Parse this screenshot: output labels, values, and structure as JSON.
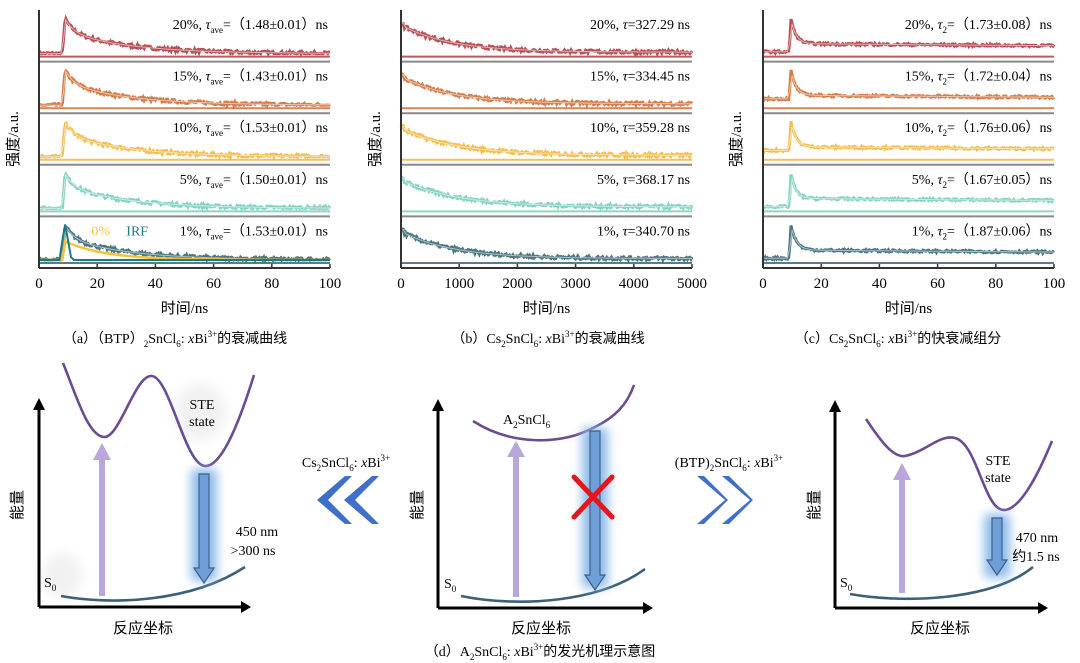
{
  "chart_data": [
    {
      "type": "line",
      "panel": "a",
      "title": "（a）（BTP）2SnCl6: xBi3+的衰减曲线",
      "caption_parts": {
        "prefix": "（a）（BTP）",
        "sub1": "2",
        "mid": "SnCl",
        "sub2": "6",
        "post": ": ",
        "x": "x",
        "bi": "Bi",
        "sup": "3+",
        "tail": "的衰减曲线"
      },
      "xlabel": "时间/ns",
      "ylabel": "强度/a.u.",
      "xlim": [
        0,
        100
      ],
      "xticks": [
        0,
        20,
        40,
        60,
        80,
        100
      ],
      "decay_kind": "fast_avg",
      "onset": 8,
      "series": [
        {
          "name": "20%",
          "label_pre": "20%, ",
          "sym": "τ",
          "sub": "ave",
          "label_post": "=（1.48±0.01）ns",
          "tau": 1.48,
          "err": 0.01,
          "color": "#a3151c"
        },
        {
          "name": "15%",
          "label_pre": "15%, ",
          "sym": "τ",
          "sub": "ave",
          "label_post": "=（1.43±0.01）ns",
          "tau": 1.43,
          "err": 0.01,
          "color": "#c9500f"
        },
        {
          "name": "10%",
          "label_pre": "10%, ",
          "sym": "τ",
          "sub": "ave",
          "label_post": "=（1.53±0.01）ns",
          "tau": 1.53,
          "err": 0.01,
          "color": "#f0a818"
        },
        {
          "name": "5%",
          "label_pre": "5%, ",
          "sym": "τ",
          "sub": "ave",
          "label_post": "=（1.50±0.01）ns",
          "tau": 1.5,
          "err": 0.01,
          "color": "#5dc4ad"
        },
        {
          "name": "1%",
          "label_pre": "1%, ",
          "sym": "τ",
          "sub": "ave",
          "label_post": "=（1.53±0.01）ns",
          "tau": 1.53,
          "err": 0.01,
          "color": "#0d4a58"
        }
      ],
      "extra_legend": [
        {
          "name": "0%",
          "color": "#f5c23a"
        },
        {
          "name": "IRF",
          "color": "#1c7a86"
        }
      ]
    },
    {
      "type": "line",
      "panel": "b",
      "title": "（b）Cs2SnCl6: xBi3+的衰减曲线",
      "caption_parts": {
        "prefix": "（b）Cs",
        "sub1": "2",
        "mid": "SnCl",
        "sub2": "6",
        "post": ": ",
        "x": "x",
        "bi": "Bi",
        "sup": "3+",
        "tail": "的衰减曲线"
      },
      "xlabel": "时间/ns",
      "ylabel": "强度/a.u.",
      "xlim": [
        0,
        5000
      ],
      "xticks": [
        0,
        1000,
        2000,
        3000,
        4000,
        5000
      ],
      "decay_kind": "slow",
      "onset": 50,
      "series": [
        {
          "name": "20%",
          "label_pre": "20%, ",
          "sym": "τ",
          "sub": "",
          "label_post": "=327.29 ns",
          "tau": 327.29,
          "color": "#a3151c"
        },
        {
          "name": "15%",
          "label_pre": "15%, ",
          "sym": "τ",
          "sub": "",
          "label_post": "=334.45 ns",
          "tau": 334.45,
          "color": "#c9500f"
        },
        {
          "name": "10%",
          "label_pre": "10%, ",
          "sym": "τ",
          "sub": "",
          "label_post": "=359.28 ns",
          "tau": 359.28,
          "color": "#f0a818"
        },
        {
          "name": "5%",
          "label_pre": "5%, ",
          "sym": "τ",
          "sub": "",
          "label_post": "=368.17 ns",
          "tau": 368.17,
          "color": "#5dc4ad"
        },
        {
          "name": "1%",
          "label_pre": "1%, ",
          "sym": "τ",
          "sub": "",
          "label_post": "=340.70 ns",
          "tau": 340.7,
          "color": "#0d4a58"
        }
      ]
    },
    {
      "type": "line",
      "panel": "c",
      "title": "（c）Cs2SnCl6: xBi3+的快衰减组分",
      "caption_parts": {
        "prefix": "（c）Cs",
        "sub1": "2",
        "mid": "SnCl",
        "sub2": "6",
        "post": ": ",
        "x": "x",
        "bi": "Bi",
        "sup": "3+",
        "tail": "的快衰减组分"
      },
      "xlabel": "时间/ns",
      "ylabel": "强度/a.u.",
      "xlim": [
        0,
        100
      ],
      "xticks": [
        0,
        20,
        40,
        60,
        80,
        100
      ],
      "decay_kind": "fast_spike",
      "onset": 9,
      "series": [
        {
          "name": "20%",
          "label_pre": "20%, ",
          "sym": "τ",
          "sub": "2",
          "label_post": "=（1.73±0.08）ns",
          "tau": 1.73,
          "err": 0.08,
          "color": "#a3151c"
        },
        {
          "name": "15%",
          "label_pre": "15%, ",
          "sym": "τ",
          "sub": "2",
          "label_post": "=（1.72±0.04）ns",
          "tau": 1.72,
          "err": 0.04,
          "color": "#c9500f"
        },
        {
          "name": "10%",
          "label_pre": "10%, ",
          "sym": "τ",
          "sub": "2",
          "label_post": "=（1.76±0.06）ns",
          "tau": 1.76,
          "err": 0.06,
          "color": "#f0a818"
        },
        {
          "name": "5%",
          "label_pre": "5%, ",
          "sym": "τ",
          "sub": "2",
          "label_post": "=（1.67±0.05）ns",
          "tau": 1.67,
          "err": 0.05,
          "color": "#5dc4ad"
        },
        {
          "name": "1%",
          "label_pre": "1%, ",
          "sym": "τ",
          "sub": "2",
          "label_post": "=（1.87±0.06）ns",
          "tau": 1.87,
          "err": 0.06,
          "color": "#0d4a58"
        }
      ]
    }
  ],
  "diagram": {
    "caption_parts": {
      "prefix": "（d）A",
      "sub1": "2",
      "mid": "SnCl",
      "sub2": "6",
      "post": ": ",
      "x": "x",
      "bi": "Bi",
      "sup": "3+",
      "tail": "的发光机理示意图"
    },
    "ylabel": "能量",
    "xlabel": "反应坐标",
    "ground_label": {
      "main": "S",
      "sub": "0"
    },
    "left": {
      "state_label_1": "STE",
      "state_label_2": "state",
      "emission_1": "450 nm",
      "emission_2": ">300 ns"
    },
    "center": {
      "state_label": {
        "main": "A",
        "sub1": "2",
        "mid": "SnCl",
        "sub2": "6"
      },
      "blocked_marker": "×"
    },
    "right": {
      "state_label_1": "STE",
      "state_label_2": "state",
      "emission_1": "470 nm",
      "emission_2": "约1.5 ns"
    },
    "left_transition": {
      "pre": "Cs",
      "sub1": "2",
      "mid": "SnCl",
      "sub2": "6",
      "post": ": ",
      "x": "x",
      "bi": "Bi",
      "sup": "3+"
    },
    "right_transition": {
      "pre": "(BTP)",
      "sub1": "2",
      "mid": "SnCl",
      "sub2": "6",
      "post": ": ",
      "x": "x",
      "bi": "Bi",
      "sup": "3+"
    },
    "colors": {
      "excited_curve": "#6a4c93",
      "ground_curve": "#3c5f7a",
      "excitation_arrow": "#b9a6db",
      "emission_arrow": "#6f9fd8",
      "emission_glow": "#9cc3ee",
      "chevron": "#3f6fc8",
      "cross": "#e8141b"
    }
  }
}
